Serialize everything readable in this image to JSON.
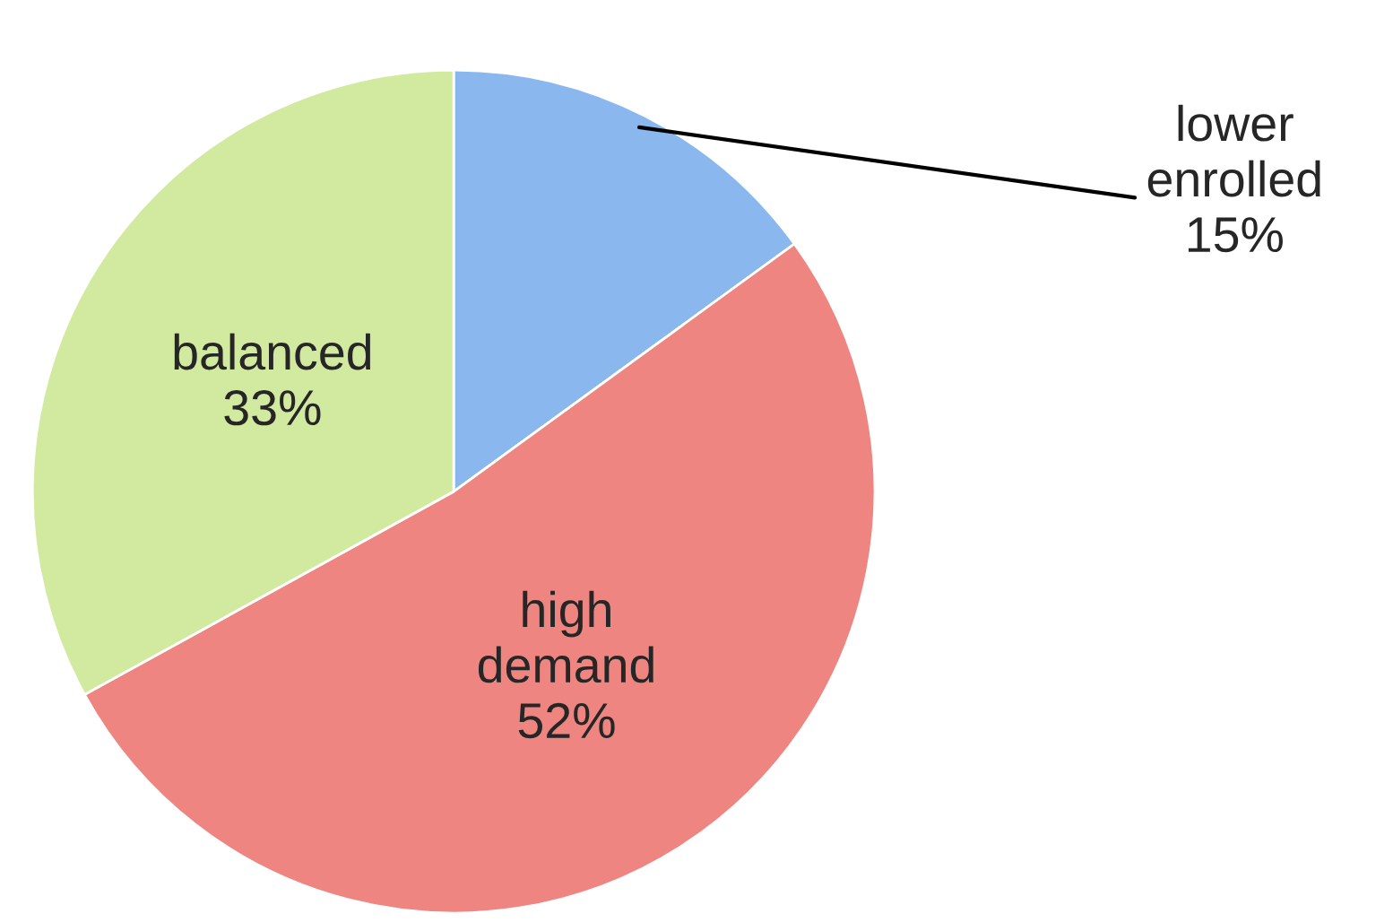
{
  "chart_data": {
    "type": "pie",
    "categories": [
      "lower enrolled",
      "high demand",
      "balanced"
    ],
    "values": [
      15,
      52,
      33
    ],
    "value_labels": [
      "15%",
      "52%",
      "33%"
    ],
    "colors": [
      "#8ab8ee",
      "#ee8580",
      "#d2eaa0"
    ]
  }
}
